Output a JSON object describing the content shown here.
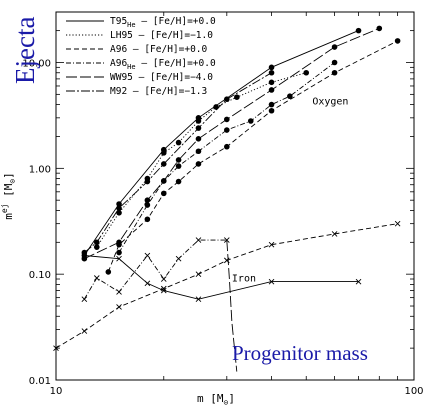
{
  "chart_data": {
    "type": "line",
    "title_left": "Ejecta",
    "overlay_label": "Progenitor mass",
    "xlabel": "m   [M",
    "xlabel_sub": "⊙",
    "xlabel_close": "]",
    "ylabel": "m",
    "ylabel_sub": "ej",
    "ylabel_unit": "  [M",
    "ylabel_unit_sub": "⊙",
    "ylabel_close": "]",
    "xscale": "log",
    "yscale": "log",
    "xlim": [
      10,
      100
    ],
    "ylim": [
      0.01,
      30
    ],
    "x_ticks": [
      {
        "v": 10,
        "label": "10"
      },
      {
        "v": 100,
        "label": "100"
      }
    ],
    "y_ticks": [
      {
        "v": 0.01,
        "label": "0.01"
      },
      {
        "v": 0.1,
        "label": "0.10"
      },
      {
        "v": 1,
        "label": "1.00"
      },
      {
        "v": 10,
        "label": "10.00"
      }
    ],
    "annotations": [
      {
        "text": "Oxygen",
        "x": 52,
        "y": 4.0
      },
      {
        "text": "Iron",
        "x": 31,
        "y": 0.085
      }
    ],
    "legend": {
      "position": "top-left",
      "entries": [
        {
          "name": "T95",
          "sub": "He",
          "meta": " – [Fe/H]=+0.0",
          "dash": ""
        },
        {
          "name": "LH95",
          "sub": "",
          "meta": " – [Fe/H]=−1.0",
          "dash": "1.2,2"
        },
        {
          "name": "A96",
          "sub": "",
          "meta": "  – [Fe/H]=+0.0",
          "dash": "5,3"
        },
        {
          "name": "A96",
          "sub": "He",
          "meta": " – [Fe/H]=+0.0",
          "dash": "5,2,1,2"
        },
        {
          "name": "WW95",
          "sub": "",
          "meta": " – [Fe/H]=−4.0",
          "dash": "11,3"
        },
        {
          "name": "M92",
          "sub": "",
          "meta": "  – [Fe/H]=−1.3",
          "dash": "9,2,2,2"
        }
      ]
    },
    "series": [
      {
        "element": "Oxygen",
        "marker": "dot",
        "dash": "",
        "points": [
          [
            12,
            0.15
          ],
          [
            15,
            0.46
          ],
          [
            20,
            1.5
          ],
          [
            25,
            3.0
          ],
          [
            40,
            9.0
          ],
          [
            70,
            20.0
          ]
        ]
      },
      {
        "element": "Oxygen",
        "marker": "dot",
        "dash": "1.2,2",
        "points": [
          [
            13,
            0.18
          ],
          [
            15,
            0.38
          ],
          [
            18,
            0.8
          ],
          [
            20,
            1.4
          ],
          [
            22,
            1.75
          ],
          [
            25,
            2.8
          ],
          [
            28,
            3.8
          ],
          [
            32,
            4.7
          ],
          [
            40,
            6.5
          ],
          [
            50,
            8.0
          ]
        ]
      },
      {
        "element": "Oxygen",
        "marker": "dot",
        "dash": "5,3",
        "points": [
          [
            14,
            0.105
          ],
          [
            15,
            0.19
          ],
          [
            18,
            0.33
          ],
          [
            20,
            0.58
          ],
          [
            22,
            0.75
          ],
          [
            25,
            1.1
          ],
          [
            30,
            1.6
          ],
          [
            40,
            3.5
          ],
          [
            60,
            8.0
          ],
          [
            90,
            16.0
          ]
        ]
      },
      {
        "element": "Oxygen",
        "marker": "dot",
        "dash": "5,2,1,2",
        "points": [
          [
            15,
            0.16
          ],
          [
            18,
            0.45
          ],
          [
            20,
            0.76
          ],
          [
            22,
            1.05
          ],
          [
            25,
            1.45
          ],
          [
            30,
            2.3
          ],
          [
            35,
            2.8
          ],
          [
            40,
            4.0
          ],
          [
            45,
            4.8
          ],
          [
            60,
            10.0
          ]
        ]
      },
      {
        "element": "Oxygen",
        "marker": "dot",
        "dash": "11,3",
        "points": [
          [
            12,
            0.14
          ],
          [
            15,
            0.2
          ],
          [
            18,
            0.5
          ],
          [
            20,
            0.76
          ],
          [
            22,
            1.2
          ],
          [
            25,
            1.9
          ],
          [
            30,
            2.9
          ],
          [
            40,
            5.5
          ],
          [
            60,
            14.0
          ],
          [
            80,
            21.0
          ]
        ]
      },
      {
        "element": "Oxygen",
        "marker": "dot",
        "dash": "9,2,2,2",
        "points": [
          [
            12,
            0.16
          ],
          [
            13,
            0.2
          ],
          [
            15,
            0.42
          ],
          [
            18,
            0.75
          ],
          [
            20,
            1.1
          ],
          [
            25,
            2.4
          ],
          [
            30,
            4.5
          ],
          [
            40,
            8.0
          ]
        ]
      },
      {
        "element": "Iron",
        "marker": "cross",
        "dash": "",
        "points": [
          [
            12,
            0.15
          ],
          [
            15,
            0.14
          ],
          [
            18,
            0.082
          ],
          [
            20,
            0.07
          ],
          [
            25,
            0.058
          ],
          [
            40,
            0.085
          ],
          [
            70,
            0.085
          ]
        ]
      },
      {
        "element": "Iron",
        "marker": "cross",
        "dash": "5,3",
        "points": [
          [
            10,
            0.02
          ],
          [
            12,
            0.029
          ],
          [
            15,
            0.049
          ],
          [
            20,
            0.073
          ],
          [
            25,
            0.1
          ],
          [
            30,
            0.135
          ],
          [
            40,
            0.19
          ],
          [
            60,
            0.24
          ],
          [
            90,
            0.3
          ]
        ]
      },
      {
        "element": "Iron",
        "marker": "cross",
        "dash": "5,2,1,2",
        "points": [
          [
            12,
            0.058
          ],
          [
            13,
            0.092
          ],
          [
            15,
            0.068
          ],
          [
            18,
            0.15
          ],
          [
            20,
            0.09
          ],
          [
            22,
            0.14
          ],
          [
            25,
            0.21
          ],
          [
            30,
            0.21
          ]
        ]
      },
      {
        "element": "Iron",
        "marker": "none",
        "dash": "11,3",
        "points": [
          [
            30,
            0.21
          ],
          [
            30.5,
            0.09
          ],
          [
            31,
            0.035
          ],
          [
            32,
            0.012
          ]
        ]
      }
    ]
  }
}
